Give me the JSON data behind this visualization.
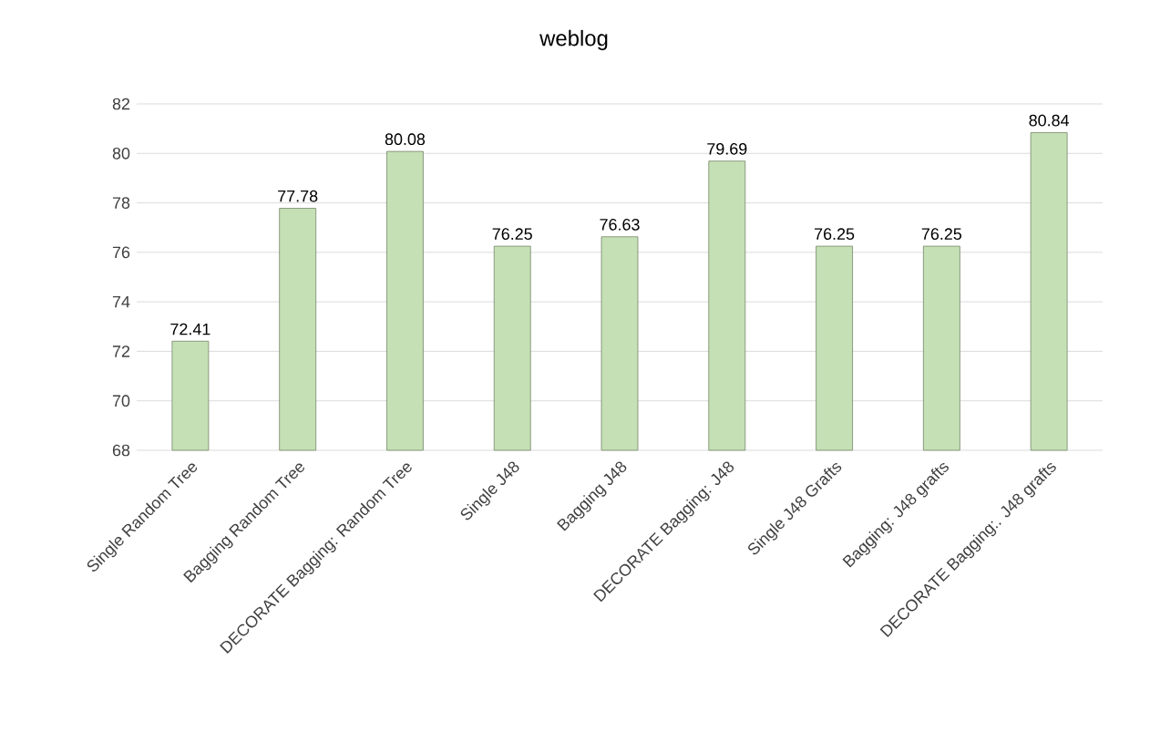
{
  "chart_data": {
    "type": "bar",
    "title": "weblog",
    "categories": [
      "Single Random Tree",
      "Bagging Random Tree",
      "DECORATE Bagging: Random Tree",
      "Single J48",
      "Bagging J48",
      "DECORATE Bagging: J48",
      "Single J48 Grafts",
      "Bagging: J48 grafts",
      "DECORATE Bagging:. J48 grafts"
    ],
    "values": [
      72.41,
      77.78,
      80.08,
      76.25,
      76.63,
      79.69,
      76.25,
      76.25,
      80.84
    ],
    "color": "#c5e0b4",
    "ylim": [
      68,
      82
    ],
    "yticks": [
      68,
      70,
      72,
      74,
      76,
      78,
      80,
      82
    ],
    "grid": "y",
    "data_labels": true
  }
}
